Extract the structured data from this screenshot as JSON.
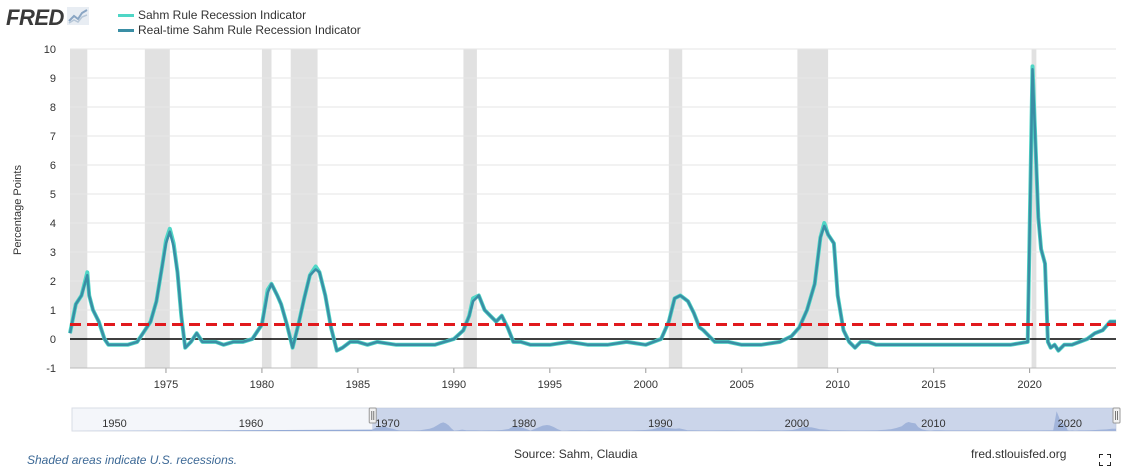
{
  "header": {
    "logo_text": "FRED",
    "logo_icon": "fred-chart-icon"
  },
  "legend": {
    "items": [
      {
        "label": "Sahm Rule Recession Indicator",
        "color": "#4fd6c6"
      },
      {
        "label": "Real-time Sahm Rule Recession Indicator",
        "color": "#3a8ea5"
      }
    ]
  },
  "colors": {
    "recession_shade": "#e1e1e1",
    "threshold_line": "#e1191d",
    "zero_line": "#000000",
    "navigator_fill": "#c7d3ea",
    "navigator_selection": "#a9b9dc"
  },
  "chart_data": {
    "type": "line",
    "ylabel": "Percentage Points",
    "ylim": [
      -1,
      10
    ],
    "xlim": [
      1970.0,
      2024.5
    ],
    "yticks": [
      "-1",
      "0",
      "1",
      "2",
      "3",
      "4",
      "5",
      "6",
      "7",
      "8",
      "9",
      "10"
    ],
    "xticks": [
      "1975",
      "1980",
      "1985",
      "1990",
      "1995",
      "2000",
      "2005",
      "2010",
      "2015",
      "2020"
    ],
    "threshold": 0.5,
    "recessions": [
      [
        1970.0,
        1970.9
      ],
      [
        1973.9,
        1975.2
      ],
      [
        1980.0,
        1980.5
      ],
      [
        1981.5,
        1982.9
      ],
      [
        1990.5,
        1991.2
      ],
      [
        2001.2,
        2001.9
      ],
      [
        2007.9,
        2009.5
      ],
      [
        2020.1,
        2020.35
      ]
    ],
    "series": [
      {
        "name": "Sahm Rule Recession Indicator",
        "x": [
          1970.0,
          1970.3,
          1970.6,
          1970.9,
          1971.0,
          1971.2,
          1971.5,
          1971.8,
          1972.0,
          1972.5,
          1973.0,
          1973.5,
          1973.9,
          1974.2,
          1974.5,
          1974.8,
          1975.0,
          1975.2,
          1975.4,
          1975.6,
          1975.8,
          1976.0,
          1976.3,
          1976.6,
          1976.9,
          1977.2,
          1977.6,
          1978.0,
          1978.5,
          1979.0,
          1979.5,
          1980.0,
          1980.3,
          1980.5,
          1980.8,
          1981.0,
          1981.3,
          1981.6,
          1981.9,
          1982.2,
          1982.5,
          1982.8,
          1983.0,
          1983.3,
          1983.6,
          1983.9,
          1984.2,
          1984.6,
          1985.0,
          1985.5,
          1986.0,
          1987.0,
          1988.0,
          1989.0,
          1990.0,
          1990.5,
          1990.8,
          1991.0,
          1991.3,
          1991.6,
          1991.9,
          1992.2,
          1992.5,
          1992.8,
          1993.1,
          1993.5,
          1994.0,
          1995.0,
          1996.0,
          1997.0,
          1998.0,
          1999.0,
          2000.0,
          2000.8,
          2001.2,
          2001.5,
          2001.8,
          2002.0,
          2002.2,
          2002.5,
          2002.8,
          2003.0,
          2003.3,
          2003.6,
          2003.9,
          2004.3,
          2005.0,
          2006.0,
          2007.0,
          2007.6,
          2008.0,
          2008.4,
          2008.8,
          2009.1,
          2009.3,
          2009.5,
          2009.8,
          2010.0,
          2010.3,
          2010.6,
          2010.9,
          2011.2,
          2011.6,
          2012.0,
          2013.0,
          2014.0,
          2015.0,
          2016.0,
          2017.0,
          2018.0,
          2019.0,
          2019.9,
          2020.15,
          2020.3,
          2020.45,
          2020.6,
          2020.8,
          2020.95,
          2021.1,
          2021.3,
          2021.5,
          2021.8,
          2022.2,
          2022.6,
          2023.0,
          2023.4,
          2023.8,
          2024.2,
          2024.5
        ],
        "values": [
          0.2,
          1.2,
          1.5,
          2.3,
          1.5,
          1.0,
          0.6,
          0.0,
          -0.2,
          -0.2,
          -0.2,
          -0.1,
          0.3,
          0.6,
          1.3,
          2.5,
          3.4,
          3.8,
          3.3,
          2.3,
          0.8,
          -0.3,
          -0.1,
          0.2,
          -0.1,
          -0.1,
          -0.1,
          -0.2,
          -0.1,
          -0.1,
          0.0,
          0.5,
          1.7,
          1.9,
          1.5,
          1.2,
          0.5,
          -0.3,
          0.5,
          1.4,
          2.2,
          2.5,
          2.3,
          1.5,
          0.4,
          -0.4,
          -0.3,
          -0.1,
          -0.1,
          -0.2,
          -0.1,
          -0.2,
          -0.2,
          -0.2,
          0.0,
          0.3,
          0.8,
          1.4,
          1.5,
          1.0,
          0.8,
          0.6,
          0.8,
          0.4,
          -0.1,
          -0.1,
          -0.2,
          -0.2,
          -0.1,
          -0.2,
          -0.2,
          -0.1,
          -0.2,
          0.0,
          0.6,
          1.4,
          1.5,
          1.4,
          1.3,
          0.9,
          0.4,
          0.3,
          0.1,
          -0.1,
          -0.1,
          -0.1,
          -0.2,
          -0.2,
          -0.1,
          0.1,
          0.4,
          1.0,
          1.9,
          3.5,
          4.0,
          3.6,
          3.3,
          1.5,
          0.3,
          -0.1,
          -0.3,
          -0.1,
          -0.1,
          -0.2,
          -0.2,
          -0.2,
          -0.2,
          -0.2,
          -0.2,
          -0.2,
          -0.2,
          -0.1,
          9.4,
          6.8,
          4.2,
          3.1,
          2.6,
          -0.1,
          -0.3,
          -0.2,
          -0.4,
          -0.2,
          -0.2,
          -0.1,
          0.0,
          0.2,
          0.3,
          0.6,
          0.6
        ]
      },
      {
        "name": "Real-time Sahm Rule Recession Indicator",
        "x": [
          1970.0,
          1970.3,
          1970.6,
          1970.9,
          1971.0,
          1971.2,
          1971.5,
          1971.8,
          1972.0,
          1972.5,
          1973.0,
          1973.5,
          1973.9,
          1974.2,
          1974.5,
          1974.8,
          1975.0,
          1975.2,
          1975.4,
          1975.6,
          1975.8,
          1976.0,
          1976.3,
          1976.6,
          1976.9,
          1977.2,
          1977.6,
          1978.0,
          1978.5,
          1979.0,
          1979.5,
          1980.0,
          1980.3,
          1980.5,
          1980.8,
          1981.0,
          1981.3,
          1981.6,
          1981.9,
          1982.2,
          1982.5,
          1982.8,
          1983.0,
          1983.3,
          1983.6,
          1983.9,
          1984.2,
          1984.6,
          1985.0,
          1985.5,
          1986.0,
          1987.0,
          1988.0,
          1989.0,
          1990.0,
          1990.5,
          1990.8,
          1991.0,
          1991.3,
          1991.6,
          1991.9,
          1992.2,
          1992.5,
          1992.8,
          1993.1,
          1993.5,
          1994.0,
          1995.0,
          1996.0,
          1997.0,
          1998.0,
          1999.0,
          2000.0,
          2000.8,
          2001.2,
          2001.5,
          2001.8,
          2002.0,
          2002.2,
          2002.5,
          2002.8,
          2003.0,
          2003.3,
          2003.6,
          2003.9,
          2004.3,
          2005.0,
          2006.0,
          2007.0,
          2007.6,
          2008.0,
          2008.4,
          2008.8,
          2009.1,
          2009.3,
          2009.5,
          2009.8,
          2010.0,
          2010.3,
          2010.6,
          2010.9,
          2011.2,
          2011.6,
          2012.0,
          2013.0,
          2014.0,
          2015.0,
          2016.0,
          2017.0,
          2018.0,
          2019.0,
          2019.9,
          2020.15,
          2020.3,
          2020.45,
          2020.6,
          2020.8,
          2020.95,
          2021.1,
          2021.3,
          2021.5,
          2021.8,
          2022.2,
          2022.6,
          2023.0,
          2023.4,
          2023.8,
          2024.2,
          2024.5
        ],
        "values": [
          0.2,
          1.2,
          1.5,
          2.2,
          1.5,
          1.0,
          0.6,
          0.0,
          -0.2,
          -0.2,
          -0.2,
          -0.1,
          0.3,
          0.6,
          1.3,
          2.5,
          3.3,
          3.7,
          3.2,
          2.3,
          0.8,
          -0.3,
          -0.1,
          0.2,
          -0.1,
          -0.1,
          -0.1,
          -0.2,
          -0.1,
          -0.1,
          0.0,
          0.5,
          1.6,
          1.9,
          1.5,
          1.2,
          0.5,
          -0.3,
          0.5,
          1.4,
          2.2,
          2.4,
          2.3,
          1.5,
          0.4,
          -0.4,
          -0.3,
          -0.1,
          -0.1,
          -0.2,
          -0.1,
          -0.2,
          -0.2,
          -0.2,
          0.0,
          0.3,
          0.8,
          1.3,
          1.5,
          1.0,
          0.8,
          0.6,
          0.8,
          0.4,
          -0.1,
          -0.1,
          -0.2,
          -0.2,
          -0.1,
          -0.2,
          -0.2,
          -0.1,
          -0.2,
          0.0,
          0.6,
          1.4,
          1.5,
          1.4,
          1.3,
          0.9,
          0.4,
          0.3,
          0.1,
          -0.1,
          -0.1,
          -0.1,
          -0.2,
          -0.2,
          -0.1,
          0.1,
          0.4,
          1.0,
          1.9,
          3.5,
          3.9,
          3.6,
          3.3,
          1.5,
          0.3,
          -0.1,
          -0.3,
          -0.1,
          -0.1,
          -0.2,
          -0.2,
          -0.2,
          -0.2,
          -0.2,
          -0.2,
          -0.2,
          -0.2,
          -0.1,
          9.3,
          6.8,
          4.2,
          3.1,
          2.6,
          -0.1,
          -0.3,
          -0.2,
          -0.4,
          -0.2,
          -0.2,
          -0.1,
          0.0,
          0.2,
          0.3,
          0.6,
          0.6
        ]
      }
    ]
  },
  "navigator": {
    "labels": [
      "1950",
      "1960",
      "1970",
      "1980",
      "1990",
      "2000",
      "2010",
      "2020"
    ],
    "selected_range": [
      1970.0,
      2024.5
    ],
    "full_range": [
      1948.0,
      2024.5
    ]
  },
  "footer": {
    "note": "Shaded areas indicate U.S. recessions.",
    "source": "Source: Sahm, Claudia",
    "site": "fred.stlouisfed.org"
  }
}
